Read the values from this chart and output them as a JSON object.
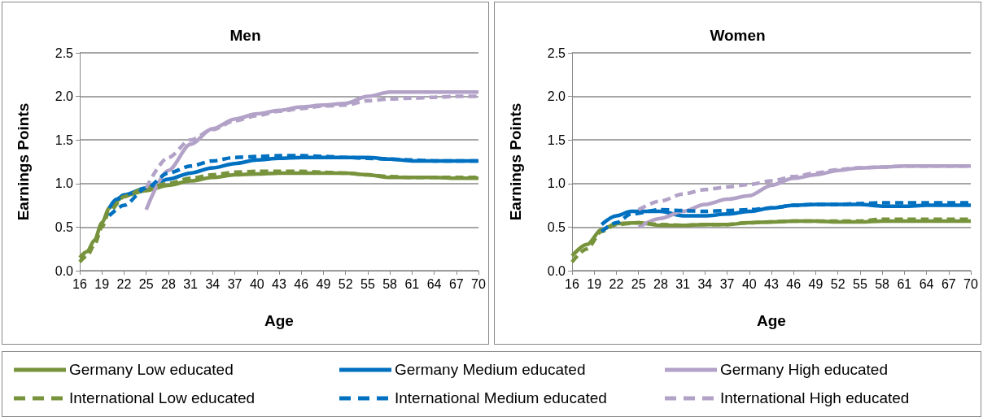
{
  "chart_data": [
    {
      "type": "line",
      "title": "Men",
      "xlabel": "Age",
      "ylabel": "Earnings Points",
      "xlim": [
        16,
        70
      ],
      "xticks": [
        16,
        19,
        22,
        25,
        28,
        31,
        34,
        37,
        40,
        43,
        46,
        49,
        52,
        55,
        58,
        61,
        64,
        67,
        70
      ],
      "ylim": [
        0,
        2.5
      ],
      "yticks": [
        {
          "value": 0,
          "label": "0.0"
        },
        0.5,
        {
          "value": 1,
          "label": "1.0"
        },
        1.5,
        {
          "value": 2,
          "label": "2.0"
        },
        2.5
      ],
      "grid": "y",
      "legend": "bottom",
      "marker": "none",
      "series": [
        {
          "name": "Germany Low educated",
          "color": "#77933c",
          "line_style": "solid",
          "x": [
            16,
            17,
            18,
            19,
            20,
            21,
            22,
            25,
            28,
            31,
            34,
            37,
            40,
            43,
            46,
            49,
            52,
            55,
            58,
            61,
            64,
            67,
            70
          ],
          "values": [
            0.15,
            0.22,
            0.35,
            0.55,
            0.72,
            0.8,
            0.86,
            0.92,
            0.98,
            1.03,
            1.07,
            1.1,
            1.11,
            1.12,
            1.12,
            1.12,
            1.12,
            1.1,
            1.07,
            1.07,
            1.07,
            1.06,
            1.06
          ]
        },
        {
          "name": "Germany Medium educated",
          "color": "#0070c0",
          "line_style": "solid",
          "x": [
            20,
            21,
            22,
            25,
            28,
            31,
            34,
            37,
            40,
            43,
            46,
            49,
            52,
            55,
            58,
            61,
            64,
            67,
            70
          ],
          "values": [
            0.72,
            0.82,
            0.87,
            0.95,
            1.05,
            1.12,
            1.18,
            1.23,
            1.27,
            1.29,
            1.3,
            1.3,
            1.3,
            1.3,
            1.28,
            1.26,
            1.26,
            1.26,
            1.26
          ]
        },
        {
          "name": "Germany High educated",
          "color": "#b3a2c7",
          "line_style": "solid",
          "x": [
            25,
            28,
            31,
            34,
            37,
            40,
            43,
            46,
            49,
            52,
            55,
            58,
            61,
            64,
            67,
            70
          ],
          "values": [
            0.7,
            1.15,
            1.45,
            1.63,
            1.74,
            1.8,
            1.84,
            1.88,
            1.9,
            1.92,
            2.0,
            2.05,
            2.05,
            2.05,
            2.05,
            2.05
          ]
        },
        {
          "name": "International Low educated",
          "color": "#77933c",
          "line_style": "dashed",
          "x": [
            16,
            17,
            18,
            19,
            20,
            22,
            25,
            28,
            31,
            34,
            37,
            40,
            43,
            46,
            49,
            52,
            55,
            58,
            61,
            64,
            67,
            70
          ],
          "values": [
            0.1,
            0.17,
            0.3,
            0.5,
            0.68,
            0.85,
            0.95,
            1.0,
            1.06,
            1.1,
            1.13,
            1.14,
            1.14,
            1.14,
            1.13,
            1.12,
            1.1,
            1.08,
            1.07,
            1.07,
            1.07,
            1.07
          ]
        },
        {
          "name": "International Medium educated",
          "color": "#0070c0",
          "line_style": "dashed",
          "x": [
            20,
            22,
            25,
            28,
            31,
            34,
            37,
            40,
            43,
            46,
            49,
            52,
            55,
            58,
            61,
            64,
            67,
            70
          ],
          "values": [
            0.63,
            0.75,
            0.95,
            1.12,
            1.2,
            1.26,
            1.3,
            1.31,
            1.32,
            1.32,
            1.31,
            1.3,
            1.29,
            1.28,
            1.27,
            1.26,
            1.26,
            1.26
          ]
        },
        {
          "name": "International High educated",
          "color": "#b3a2c7",
          "line_style": "dashed",
          "x": [
            25,
            28,
            31,
            34,
            37,
            40,
            43,
            46,
            49,
            52,
            55,
            58,
            61,
            64,
            67,
            70
          ],
          "values": [
            0.95,
            1.3,
            1.5,
            1.62,
            1.72,
            1.78,
            1.83,
            1.86,
            1.89,
            1.9,
            1.95,
            1.97,
            1.98,
            1.99,
            2.0,
            2.0
          ]
        }
      ]
    },
    {
      "type": "line",
      "title": "Women",
      "xlabel": "Age",
      "ylabel": "Earnings Points",
      "xlim": [
        16,
        70
      ],
      "xticks": [
        16,
        19,
        22,
        25,
        28,
        31,
        34,
        37,
        40,
        43,
        46,
        49,
        52,
        55,
        58,
        61,
        64,
        67,
        70
      ],
      "ylim": [
        0,
        2.5
      ],
      "yticks": [
        {
          "value": 0,
          "label": "0.0"
        },
        0.5,
        {
          "value": 1,
          "label": "1.0"
        },
        1.5,
        {
          "value": 2,
          "label": "2.0"
        },
        2.5
      ],
      "grid": "y",
      "legend": "bottom",
      "marker": "none",
      "series": [
        {
          "name": "Germany Low educated",
          "color": "#77933c",
          "line_style": "solid",
          "x": [
            16,
            18,
            20,
            22,
            25,
            28,
            31,
            34,
            37,
            40,
            43,
            46,
            49,
            52,
            55,
            58,
            61,
            64,
            67,
            70
          ],
          "values": [
            0.17,
            0.3,
            0.47,
            0.54,
            0.55,
            0.52,
            0.52,
            0.53,
            0.53,
            0.55,
            0.56,
            0.57,
            0.57,
            0.56,
            0.56,
            0.57,
            0.57,
            0.57,
            0.57,
            0.57
          ]
        },
        {
          "name": "Germany Medium educated",
          "color": "#0070c0",
          "line_style": "solid",
          "x": [
            20,
            22,
            24,
            28,
            31,
            34,
            37,
            40,
            43,
            46,
            49,
            52,
            55,
            58,
            61,
            64,
            67,
            70
          ],
          "values": [
            0.53,
            0.63,
            0.68,
            0.68,
            0.63,
            0.63,
            0.65,
            0.68,
            0.72,
            0.75,
            0.76,
            0.76,
            0.76,
            0.74,
            0.74,
            0.75,
            0.75,
            0.75
          ]
        },
        {
          "name": "Germany High educated",
          "color": "#b3a2c7",
          "line_style": "solid",
          "x": [
            25,
            28,
            31,
            34,
            37,
            40,
            43,
            46,
            49,
            52,
            55,
            58,
            61,
            64,
            67,
            70
          ],
          "values": [
            0.5,
            0.6,
            0.68,
            0.76,
            0.82,
            0.86,
            0.98,
            1.06,
            1.1,
            1.15,
            1.18,
            1.19,
            1.2,
            1.2,
            1.2,
            1.2
          ]
        },
        {
          "name": "International Low educated",
          "color": "#77933c",
          "line_style": "dashed",
          "x": [
            16,
            18,
            20,
            22,
            25,
            28,
            31,
            34,
            37,
            40,
            43,
            46,
            49,
            52,
            55,
            58,
            61,
            64,
            67,
            70
          ],
          "values": [
            0.1,
            0.25,
            0.45,
            0.53,
            0.55,
            0.53,
            0.52,
            0.53,
            0.53,
            0.55,
            0.56,
            0.57,
            0.57,
            0.57,
            0.57,
            0.59,
            0.59,
            0.59,
            0.59,
            0.59
          ]
        },
        {
          "name": "International Medium educated",
          "color": "#0070c0",
          "line_style": "dashed",
          "x": [
            20,
            22,
            24,
            28,
            31,
            34,
            37,
            40,
            43,
            46,
            49,
            52,
            55,
            58,
            61,
            64,
            67,
            70
          ],
          "values": [
            0.45,
            0.55,
            0.65,
            0.7,
            0.69,
            0.68,
            0.69,
            0.7,
            0.72,
            0.75,
            0.76,
            0.76,
            0.77,
            0.78,
            0.78,
            0.78,
            0.78,
            0.78
          ]
        },
        {
          "name": "International High educated",
          "color": "#b3a2c7",
          "line_style": "dashed",
          "x": [
            25,
            28,
            31,
            34,
            37,
            40,
            43,
            46,
            49,
            52,
            55,
            58,
            61,
            64,
            67,
            70
          ],
          "values": [
            0.7,
            0.8,
            0.88,
            0.93,
            0.96,
            0.99,
            1.03,
            1.08,
            1.12,
            1.16,
            1.18,
            1.19,
            1.2,
            1.2,
            1.2,
            1.2
          ]
        }
      ]
    }
  ]
}
